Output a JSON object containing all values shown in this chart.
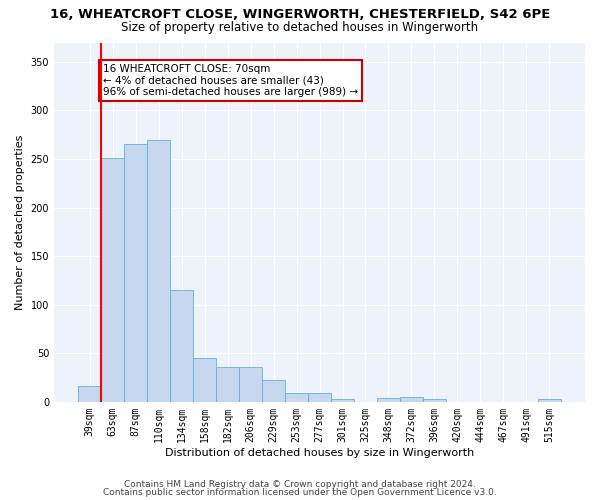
{
  "title_line1": "16, WHEATCROFT CLOSE, WINGERWORTH, CHESTERFIELD, S42 6PE",
  "title_line2": "Size of property relative to detached houses in Wingerworth",
  "xlabel": "Distribution of detached houses by size in Wingerworth",
  "ylabel": "Number of detached properties",
  "categories": [
    "39sqm",
    "63sqm",
    "87sqm",
    "110sqm",
    "134sqm",
    "158sqm",
    "182sqm",
    "206sqm",
    "229sqm",
    "253sqm",
    "277sqm",
    "301sqm",
    "325sqm",
    "348sqm",
    "372sqm",
    "396sqm",
    "420sqm",
    "444sqm",
    "467sqm",
    "491sqm",
    "515sqm"
  ],
  "values": [
    16,
    251,
    265,
    270,
    115,
    45,
    36,
    36,
    22,
    9,
    9,
    3,
    0,
    4,
    5,
    3,
    0,
    0,
    0,
    0,
    3
  ],
  "bar_color": "#c5d8f0",
  "bar_edge_color": "#6aaed6",
  "red_line_x": 0.5,
  "annotation_text": "16 WHEATCROFT CLOSE: 70sqm\n← 4% of detached houses are smaller (43)\n96% of semi-detached houses are larger (989) →",
  "annotation_box_color": "#ffffff",
  "annotation_box_edge": "#cc0000",
  "ylim": [
    0,
    370
  ],
  "yticks": [
    0,
    50,
    100,
    150,
    200,
    250,
    300,
    350
  ],
  "footer_line1": "Contains HM Land Registry data © Crown copyright and database right 2024.",
  "footer_line2": "Contains public sector information licensed under the Open Government Licence v3.0.",
  "plot_bg_color": "#eef2fb",
  "title_fontsize": 9.5,
  "subtitle_fontsize": 8.5,
  "axis_label_fontsize": 8,
  "tick_fontsize": 7,
  "footer_fontsize": 6.5
}
